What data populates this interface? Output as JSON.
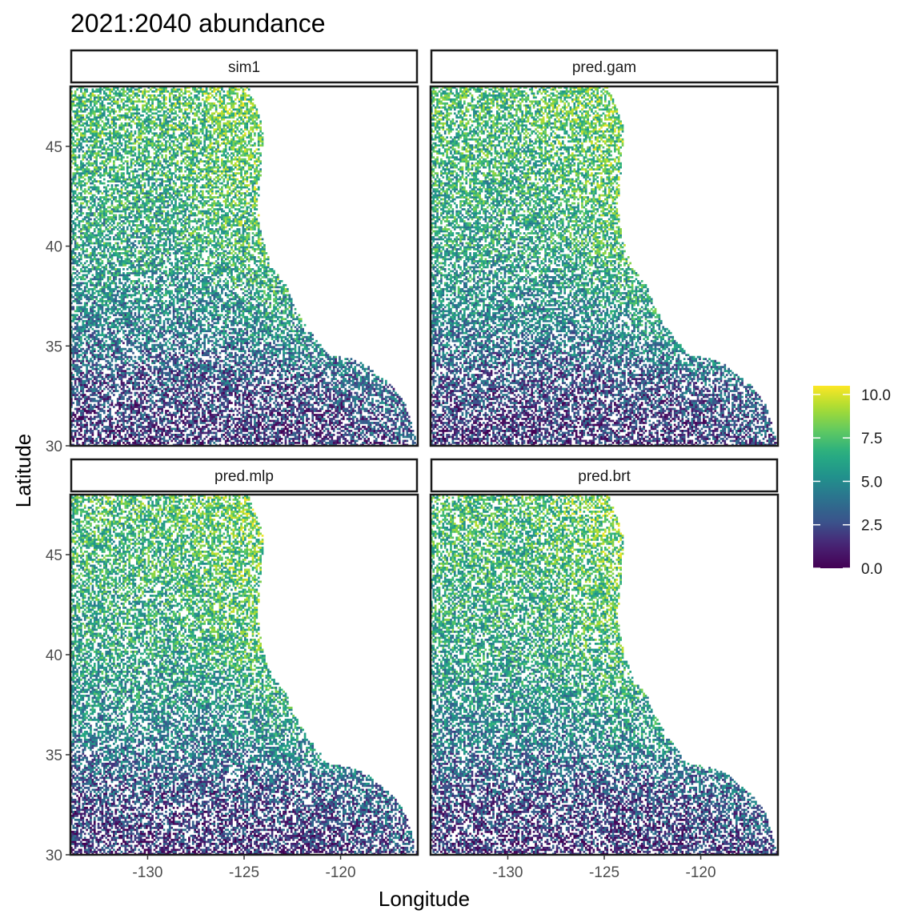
{
  "chart_data": {
    "type": "heatmap",
    "title": "2021:2040 abundance",
    "xlabel": "Longitude",
    "ylabel": "Latitude",
    "xlim": [
      -134,
      -116
    ],
    "ylim": [
      30,
      48
    ],
    "x_ticks": [
      -130,
      -125,
      -120
    ],
    "y_ticks": [
      30,
      35,
      40,
      45
    ],
    "grid": false,
    "legend": {
      "position": "right",
      "ticks": [
        "0.0",
        "2.5",
        "5.0",
        "7.5",
        "10.0"
      ],
      "range": [
        0,
        10.5
      ],
      "palette": [
        "#440154",
        "#3b528b",
        "#21918c",
        "#5ec962",
        "#fde725"
      ]
    },
    "panels": [
      {
        "label": "sim1"
      },
      {
        "label": "pred.gam"
      },
      {
        "label": "pred.mlp"
      },
      {
        "label": "pred.brt"
      }
    ],
    "coast_boundary_east_lon": [
      {
        "lat": 48,
        "lon": -124.8
      },
      {
        "lat": 46,
        "lon": -124.0
      },
      {
        "lat": 44,
        "lon": -124.1
      },
      {
        "lat": 42,
        "lon": -124.3
      },
      {
        "lat": 40.5,
        "lon": -124.1
      },
      {
        "lat": 39,
        "lon": -123.6
      },
      {
        "lat": 38,
        "lon": -122.8
      },
      {
        "lat": 37,
        "lon": -122.4
      },
      {
        "lat": 36,
        "lon": -121.8
      },
      {
        "lat": 35,
        "lon": -121.0
      },
      {
        "lat": 34.5,
        "lon": -120.6
      },
      {
        "lat": 34.4,
        "lon": -119.5
      },
      {
        "lat": 34,
        "lon": -118.6
      },
      {
        "lat": 33.5,
        "lon": -118.0
      },
      {
        "lat": 33,
        "lon": -117.3
      },
      {
        "lat": 32,
        "lon": -116.6
      },
      {
        "lat": 31,
        "lon": -116.3
      },
      {
        "lat": 30,
        "lon": -116.0
      }
    ],
    "abundance_gradient_note_lat": [
      {
        "lat": 30,
        "mean_abundance": 1.5
      },
      {
        "lat": 33,
        "mean_abundance": 2.5
      },
      {
        "lat": 36,
        "mean_abundance": 4.5
      },
      {
        "lat": 40,
        "mean_abundance": 6.0
      },
      {
        "lat": 45,
        "mean_abundance": 6.8
      },
      {
        "lat": 48,
        "mean_abundance": 7.2
      }
    ]
  }
}
